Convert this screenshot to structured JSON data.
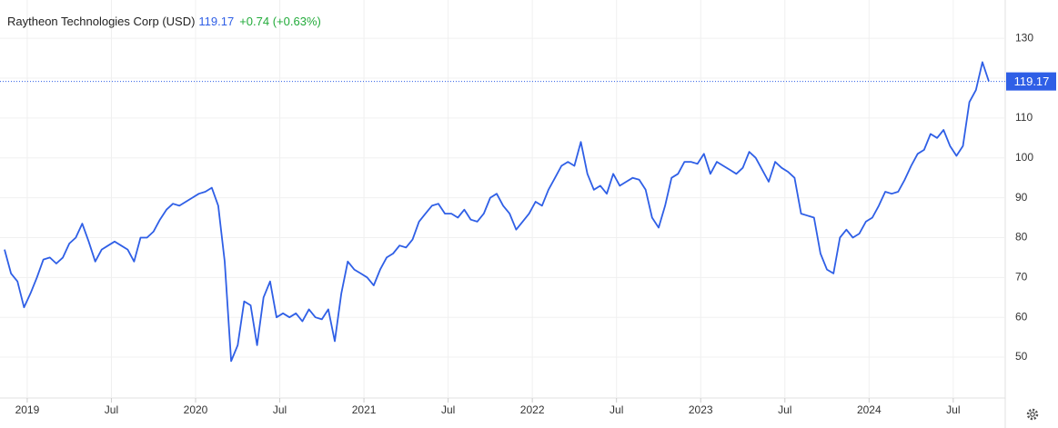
{
  "chart_data": {
    "type": "line",
    "title": "Raytheon Technologies Corp (USD)",
    "change": "+0.74 (+0.63%)",
    "color": "#2f5fe6",
    "values": [
      77,
      71,
      69,
      62.5,
      66,
      70,
      74.5,
      75,
      73.5,
      75,
      78.5,
      80,
      83.5,
      79,
      74,
      77,
      78,
      79,
      78,
      77,
      74,
      80,
      80,
      81.5,
      84.5,
      87,
      88.5,
      88,
      89,
      90,
      91,
      91.5,
      92.5,
      88,
      74,
      49,
      53,
      64,
      63,
      53,
      65,
      69,
      60,
      61,
      60,
      61,
      59,
      62,
      60,
      59.5,
      62,
      54,
      66,
      74,
      72,
      71,
      70,
      68,
      72,
      75,
      76,
      78,
      77.5,
      79.5,
      84,
      86,
      88,
      88.5,
      86,
      86,
      85,
      87,
      84.5,
      84,
      86,
      90,
      91,
      88,
      86,
      82,
      84,
      86,
      89,
      88,
      92,
      95,
      98,
      99,
      98,
      104,
      96,
      92,
      93,
      91,
      96,
      93,
      94,
      95,
      94.5,
      92,
      85,
      82.5,
      88,
      95,
      96,
      99,
      99,
      98.5,
      101,
      96,
      99,
      98,
      97,
      96,
      97.5,
      101.5,
      100,
      97,
      94,
      99,
      97.5,
      96.5,
      95,
      86,
      85.5,
      85,
      76,
      72,
      71,
      80,
      82,
      80,
      81,
      84,
      85,
      88,
      91.5,
      91,
      91.5,
      94.5,
      98,
      101,
      102,
      106,
      105,
      107,
      103,
      100.5,
      103,
      114,
      117,
      124,
      119.17
    ],
    "xlim": [
      0,
      152
    ],
    "xticks": [
      {
        "value": 3.5,
        "label": "2019"
      },
      {
        "value": 16.5,
        "label": "Jul"
      },
      {
        "value": 29.5,
        "label": "2020"
      },
      {
        "value": 42.5,
        "label": "Jul"
      },
      {
        "value": 55.5,
        "label": "2021"
      },
      {
        "value": 68.5,
        "label": "Jul"
      },
      {
        "value": 81.5,
        "label": "2022"
      },
      {
        "value": 94.5,
        "label": "Jul"
      },
      {
        "value": 107.5,
        "label": "2023"
      },
      {
        "value": 120.5,
        "label": "Jul"
      },
      {
        "value": 133.5,
        "label": "2024"
      },
      {
        "value": 146.5,
        "label": "Jul"
      }
    ],
    "ylim": [
      39.3,
      139.6
    ],
    "yticks": [
      50,
      60,
      70,
      80,
      90,
      100,
      110,
      120,
      130
    ],
    "grid": true
  }
}
